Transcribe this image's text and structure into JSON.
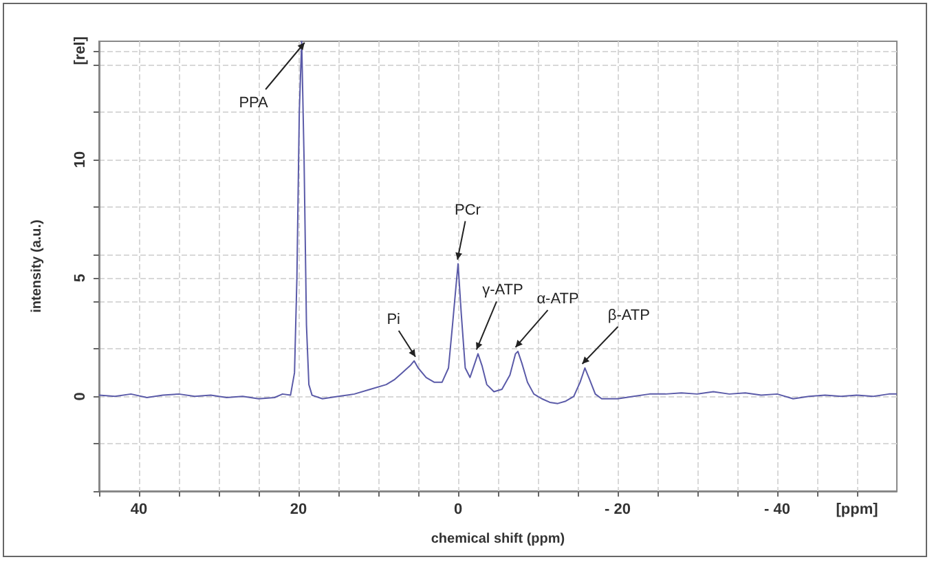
{
  "chart_data": {
    "type": "line",
    "xlabel": "chemical shift (ppm)",
    "ylabel": "intensity (a.u.)",
    "xlim": [
      45,
      -55
    ],
    "ylim": [
      -4,
      15
    ],
    "xticks": [
      {
        "value": 45,
        "label": null
      },
      40,
      {
        "value": 35,
        "label": null
      },
      {
        "value": 30,
        "label": null
      },
      {
        "value": 25,
        "label": null
      },
      20,
      {
        "value": 15,
        "label": null
      },
      {
        "value": 10,
        "label": null
      },
      {
        "value": 5,
        "label": null
      },
      0,
      {
        "value": -5,
        "label": null
      },
      {
        "value": -10,
        "label": null
      },
      {
        "value": -15,
        "label": null
      },
      {
        "value": -20,
        "label": "- 20"
      },
      {
        "value": -25,
        "label": null
      },
      {
        "value": -30,
        "label": null
      },
      {
        "value": -35,
        "label": null
      },
      {
        "value": -40,
        "label": "- 40"
      },
      {
        "value": -45,
        "label": null
      },
      {
        "value": -50,
        "label": "[ppm]"
      }
    ],
    "yticks": [
      {
        "value": -4,
        "label": null
      },
      {
        "value": -2,
        "label": null
      },
      0,
      {
        "value": 2,
        "label": null
      },
      {
        "value": 4,
        "label": null
      },
      5,
      {
        "value": 6,
        "label": null
      },
      {
        "value": 8,
        "label": null
      },
      10,
      {
        "value": 12,
        "label": null
      },
      {
        "value": 14,
        "label": null
      },
      {
        "value": 14.6,
        "label": "[rel]"
      }
    ],
    "grid": true,
    "marker": "none",
    "line_style": "solid",
    "series": [
      {
        "color": "#5a5aa8",
        "x": [
          45,
          43,
          41,
          39,
          37,
          35,
          33,
          31,
          29,
          27,
          25,
          23,
          22,
          21,
          20.5,
          20.2,
          19.9,
          19.6,
          19.3,
          19,
          18.7,
          18.3,
          17,
          15,
          13,
          11,
          9,
          8,
          7,
          6,
          5.5,
          5,
          4,
          3,
          2,
          1.2,
          0.7,
          0.3,
          0,
          -0.4,
          -0.9,
          -1.5,
          -2,
          -2.5,
          -3,
          -3.6,
          -4.5,
          -5.5,
          -6.5,
          -7.2,
          -7.5,
          -8,
          -8.7,
          -9.5,
          -10.5,
          -11.5,
          -12.5,
          -13.5,
          -14.5,
          -15.3,
          -15.9,
          -16.5,
          -17.2,
          -18,
          -20,
          -22,
          -24,
          -26,
          -28,
          -30,
          -32,
          -34,
          -36,
          -38,
          -40,
          -42,
          -44,
          -46,
          -48,
          -50,
          -52,
          -54,
          -55
        ],
        "values": [
          0.05,
          0,
          0.1,
          -0.05,
          0.05,
          0.1,
          0,
          0.05,
          -0.05,
          0,
          -0.1,
          -0.05,
          0.1,
          0.05,
          1,
          5,
          12,
          15,
          10,
          3,
          0.5,
          0.05,
          -0.1,
          0,
          0.1,
          0.3,
          0.5,
          0.7,
          1,
          1.3,
          1.5,
          1.2,
          0.8,
          0.6,
          0.6,
          1.2,
          3,
          4.5,
          5.6,
          3.5,
          1.2,
          0.8,
          1.3,
          1.8,
          1.3,
          0.5,
          0.2,
          0.3,
          0.9,
          1.8,
          1.9,
          1.4,
          0.6,
          0.1,
          -0.1,
          -0.25,
          -0.3,
          -0.2,
          0,
          0.6,
          1.2,
          0.7,
          0.1,
          -0.1,
          -0.1,
          0,
          0.1,
          0.1,
          0.15,
          0.1,
          0.2,
          0.1,
          0.15,
          0.05,
          0.1,
          -0.1,
          0,
          0.05,
          0,
          0.05,
          0,
          0.1,
          0.1
        ]
      }
    ],
    "annotations": [
      {
        "text": "PPA",
        "x": 19.6,
        "y": 15
      },
      {
        "text": "Pi",
        "x": 5.5,
        "y": 1.5
      },
      {
        "text": "PCr",
        "x": 0,
        "y": 5.6
      },
      {
        "text": "γ-ATP",
        "x": -2.5,
        "y": 1.8
      },
      {
        "text": "α-ATP",
        "x": -7.5,
        "y": 1.9
      },
      {
        "text": "β-ATP",
        "x": -15.9,
        "y": 1.2
      }
    ]
  }
}
